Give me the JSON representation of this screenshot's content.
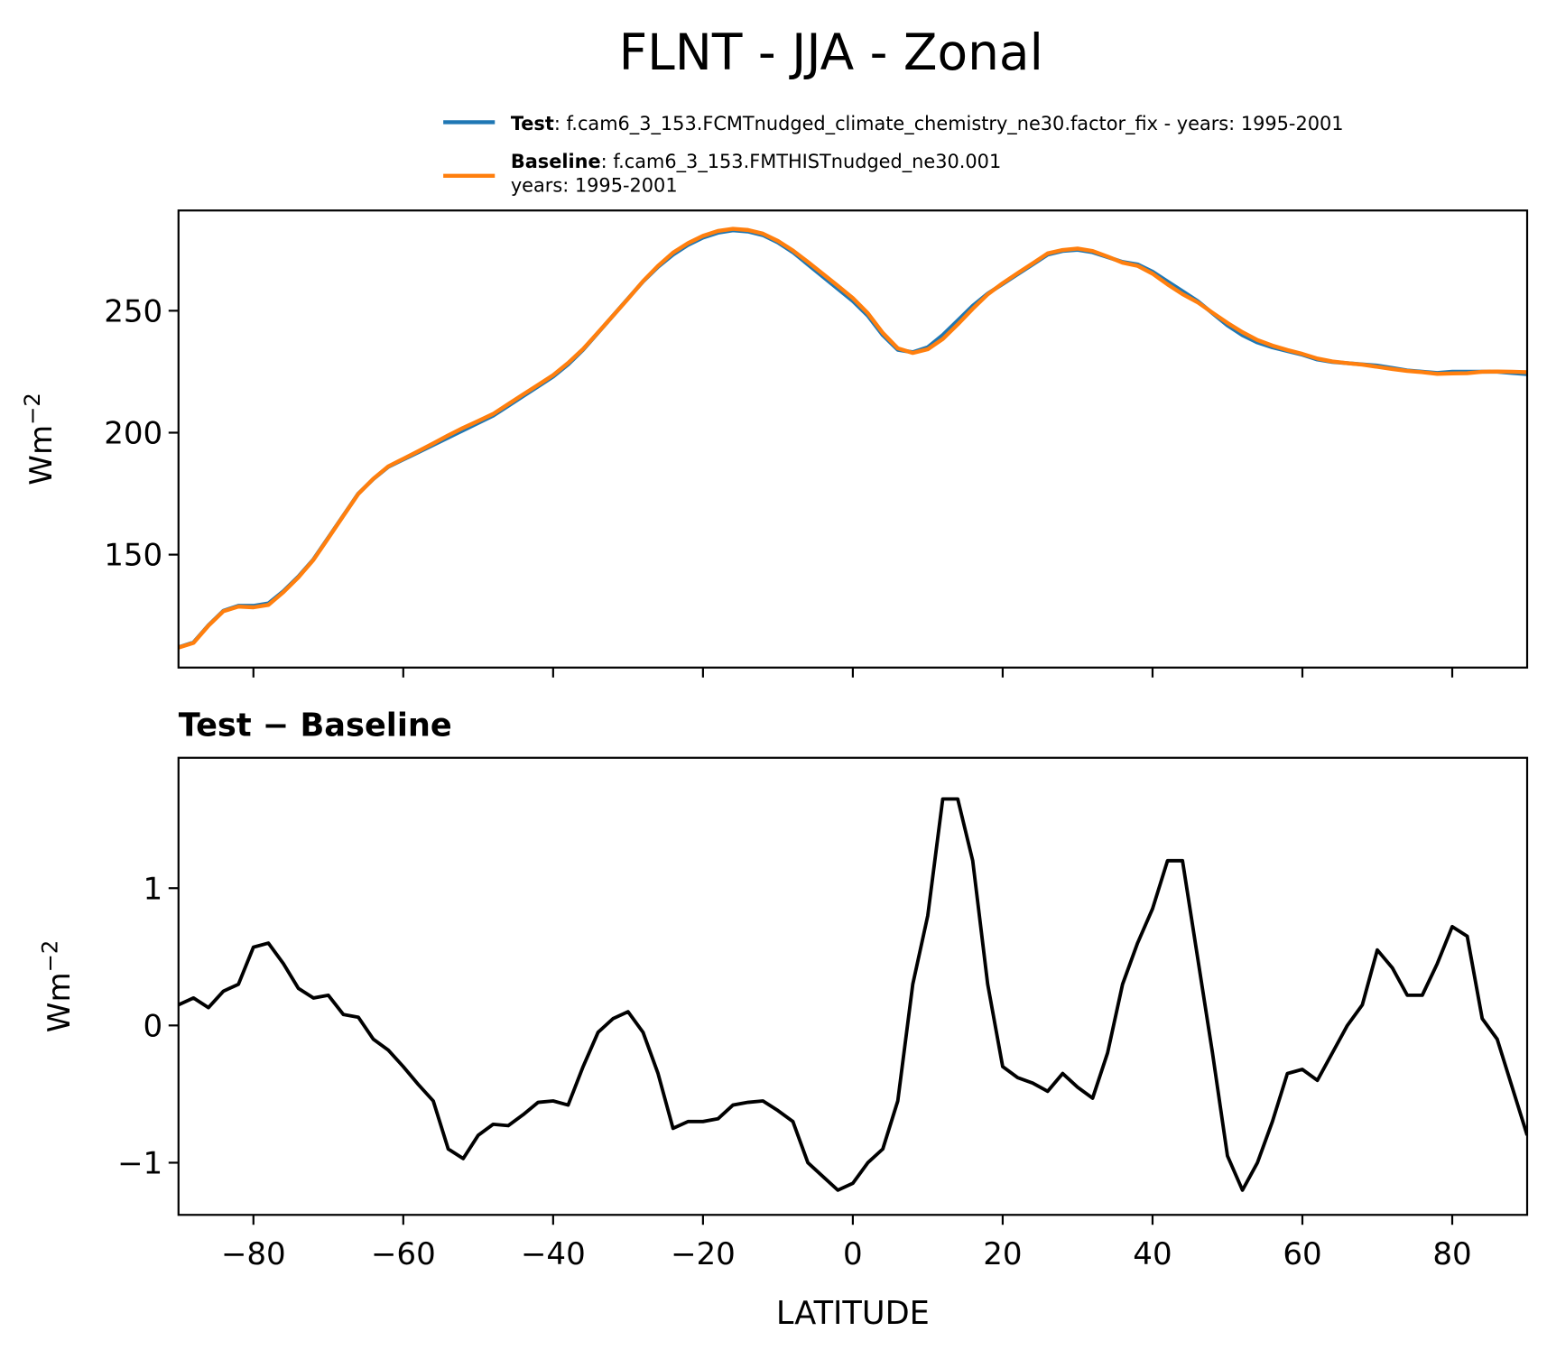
{
  "title": "FLNT - JJA - Zonal",
  "chart_data": [
    {
      "type": "line",
      "ylabel": "Wm",
      "ylabel_sup": "−2",
      "x": [
        -90,
        -88,
        -86,
        -84,
        -82,
        -80,
        -78,
        -76,
        -74,
        -72,
        -70,
        -68,
        -66,
        -64,
        -62,
        -60,
        -58,
        -56,
        -54,
        -52,
        -50,
        -48,
        -46,
        -44,
        -42,
        -40,
        -38,
        -36,
        -34,
        -32,
        -30,
        -28,
        -26,
        -24,
        -22,
        -20,
        -18,
        -16,
        -14,
        -12,
        -10,
        -8,
        -6,
        -4,
        -2,
        0,
        2,
        4,
        6,
        8,
        10,
        12,
        14,
        16,
        18,
        20,
        22,
        24,
        26,
        28,
        30,
        32,
        34,
        36,
        38,
        40,
        42,
        44,
        46,
        48,
        50,
        52,
        54,
        56,
        58,
        60,
        62,
        64,
        66,
        68,
        70,
        72,
        74,
        76,
        78,
        80,
        82,
        84,
        86,
        88,
        90
      ],
      "series": [
        {
          "name": "Test",
          "description": ": f.cam6_3_153.FCMTnudged_climate_chemistry_ne30.factor_fix - years: 1995-2001",
          "color": "#1f77b4",
          "values": [
            112,
            114,
            121,
            127,
            129,
            129,
            130,
            135,
            141,
            148,
            157,
            166,
            175,
            181,
            186,
            189,
            192,
            195,
            198,
            201,
            204,
            207,
            211,
            215,
            219,
            223,
            228,
            234,
            241,
            248,
            255,
            262,
            268,
            273,
            277,
            280,
            282,
            283,
            282.5,
            281,
            278,
            274,
            269,
            264,
            259,
            254,
            248,
            240,
            234,
            233,
            235,
            240,
            246,
            252,
            257,
            261,
            265,
            269,
            273,
            274.5,
            275,
            274,
            272,
            270,
            269,
            266,
            262,
            258,
            254,
            249,
            244,
            240,
            237,
            235,
            233.5,
            232,
            230,
            229,
            228.5,
            228,
            227.5,
            226.5,
            225.5,
            225,
            224.5,
            225,
            225,
            225,
            225,
            224.5,
            224
          ]
        },
        {
          "name": "Baseline",
          "description": [
            ": f.cam6_3_153.FMTHISTnudged_ne30.001",
            "years: 1995-2001"
          ],
          "color": "#ff7f0e",
          "values": [
            111.9,
            113.8,
            120.9,
            126.8,
            128.7,
            128.4,
            129.4,
            134.6,
            140.7,
            147.8,
            156.8,
            165.9,
            174.9,
            181.1,
            186.2,
            189.3,
            192.4,
            195.6,
            198.9,
            202.0,
            204.8,
            207.7,
            211.7,
            215.7,
            219.6,
            223.6,
            228.6,
            234.3,
            241.1,
            248.0,
            254.9,
            262.1,
            268.4,
            273.8,
            277.7,
            280.7,
            282.7,
            283.6,
            283.1,
            281.6,
            278.6,
            274.7,
            270.0,
            265.1,
            260.2,
            255.2,
            249.0,
            240.9,
            234.6,
            232.7,
            234.2,
            238.4,
            244.4,
            250.8,
            256.7,
            261.3,
            265.4,
            269.4,
            273.5,
            274.9,
            275.5,
            274.5,
            272.2,
            269.7,
            268.4,
            265.2,
            260.8,
            256.8,
            253.5,
            249.2,
            245.0,
            241.2,
            238.0,
            235.7,
            233.9,
            232.3,
            230.4,
            229.2,
            228.5,
            227.9,
            227.0,
            226.1,
            225.3,
            224.8,
            224.1,
            224.3,
            224.4,
            225.0,
            225.1,
            225.0,
            224.8
          ]
        }
      ],
      "xlim": [
        -90,
        90
      ],
      "xticks": [
        -80,
        -60,
        -40,
        -20,
        0,
        20,
        40,
        60,
        80
      ],
      "ylim": [
        103.7,
        291.1
      ],
      "yticks": [
        150,
        200,
        250
      ]
    },
    {
      "type": "line",
      "title": "Test − Baseline",
      "ylabel": "Wm",
      "ylabel_sup": "−2",
      "xlabel": "LATITUDE",
      "x": [
        -90,
        -88,
        -86,
        -84,
        -82,
        -80,
        -78,
        -76,
        -74,
        -72,
        -70,
        -68,
        -66,
        -64,
        -62,
        -60,
        -58,
        -56,
        -54,
        -52,
        -50,
        -48,
        -46,
        -44,
        -42,
        -40,
        -38,
        -36,
        -34,
        -32,
        -30,
        -28,
        -26,
        -24,
        -22,
        -20,
        -18,
        -16,
        -14,
        -12,
        -10,
        -8,
        -6,
        -4,
        -2,
        0,
        2,
        4,
        6,
        8,
        10,
        12,
        14,
        16,
        18,
        20,
        22,
        24,
        26,
        28,
        30,
        32,
        34,
        36,
        38,
        40,
        42,
        44,
        46,
        48,
        50,
        52,
        54,
        56,
        58,
        60,
        62,
        64,
        66,
        68,
        70,
        72,
        74,
        76,
        78,
        80,
        82,
        84,
        86,
        88,
        90
      ],
      "values": [
        0.15,
        0.2,
        0.13,
        0.25,
        0.3,
        0.57,
        0.6,
        0.45,
        0.27,
        0.2,
        0.22,
        0.08,
        0.06,
        -0.1,
        -0.18,
        -0.3,
        -0.43,
        -0.55,
        -0.9,
        -0.97,
        -0.8,
        -0.72,
        -0.73,
        -0.65,
        -0.56,
        -0.55,
        -0.58,
        -0.3,
        -0.05,
        0.05,
        0.1,
        -0.05,
        -0.35,
        -0.75,
        -0.7,
        -0.7,
        -0.68,
        -0.58,
        -0.56,
        -0.55,
        -0.62,
        -0.7,
        -1.0,
        -1.1,
        -1.2,
        -1.15,
        -1.0,
        -0.9,
        -0.55,
        0.3,
        0.8,
        1.65,
        1.65,
        1.2,
        0.3,
        -0.3,
        -0.38,
        -0.42,
        -0.48,
        -0.35,
        -0.45,
        -0.53,
        -0.2,
        0.3,
        0.6,
        0.85,
        1.2,
        1.2,
        0.5,
        -0.2,
        -0.95,
        -1.2,
        -1.0,
        -0.7,
        -0.35,
        -0.32,
        -0.4,
        -0.2,
        0.0,
        0.15,
        0.55,
        0.42,
        0.22,
        0.22,
        0.45,
        0.72,
        0.65,
        0.05,
        -0.1,
        -0.45,
        -0.8
      ],
      "color": "#000000",
      "xlim": [
        -90,
        90
      ],
      "xticks": [
        {
          "value": -80,
          "label": "−80"
        },
        {
          "value": -60,
          "label": "−60"
        },
        {
          "value": -40,
          "label": "−40"
        },
        {
          "value": -20,
          "label": "−20"
        },
        0,
        20,
        40,
        60,
        80
      ],
      "ylim": [
        -1.38,
        1.95
      ],
      "yticks": [
        {
          "value": -1,
          "label": "−1"
        },
        0,
        1
      ]
    }
  ]
}
